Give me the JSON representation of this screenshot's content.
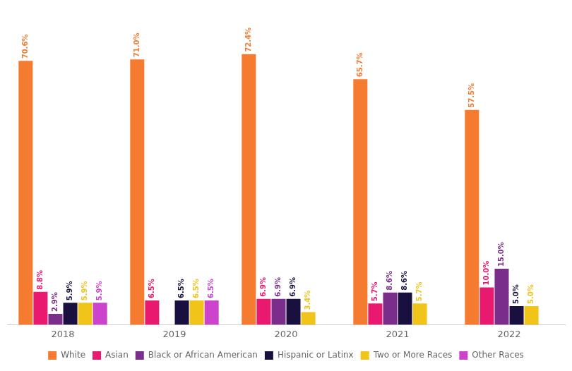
{
  "chart_data": {
    "type": "bar",
    "categories": [
      "2018",
      "2019",
      "2020",
      "2021",
      "2022"
    ],
    "series": [
      {
        "name": "White",
        "color": "#F47B30",
        "values": [
          70.6,
          71.0,
          72.4,
          65.7,
          57.5
        ],
        "value_labels": [
          "70.6%",
          "71.0%",
          "72.4%",
          "65.7%",
          "57.5%"
        ]
      },
      {
        "name": "Asian",
        "color": "#E8196E",
        "values": [
          8.8,
          6.5,
          6.9,
          5.7,
          10.0
        ],
        "value_labels": [
          "8.8%",
          "6.5%",
          "6.9%",
          "5.7%",
          "10.0%"
        ]
      },
      {
        "name": "Black or African American",
        "color": "#7B2D8B",
        "values": [
          2.9,
          0.0,
          6.9,
          8.6,
          15.0
        ],
        "value_labels": [
          "2.9%",
          null,
          "6.9%",
          "8.6%",
          "15.0%"
        ]
      },
      {
        "name": "Hispanic or Latinx",
        "color": "#1A1040",
        "values": [
          5.9,
          6.5,
          6.9,
          8.6,
          5.0
        ],
        "value_labels": [
          "5.9%",
          "6.5%",
          "6.9%",
          "8.6%",
          "5.0%"
        ]
      },
      {
        "name": "Two or More Races",
        "color": "#F0C419",
        "values": [
          5.9,
          6.5,
          3.4,
          5.7,
          5.0
        ],
        "value_labels": [
          "5.9%",
          "6.5%",
          "3.4%",
          "5.7%",
          "5.0%"
        ]
      },
      {
        "name": "Other Races",
        "color": "#CC44CC",
        "values": [
          5.9,
          6.5,
          0.0,
          0.0,
          0.0
        ],
        "value_labels": [
          "5.9%",
          "6.5%",
          null,
          null,
          null
        ]
      }
    ],
    "ylim": [
      0,
      85
    ],
    "tick_labels": "x",
    "grid": false,
    "legend": "bottom",
    "data_labels": true
  }
}
